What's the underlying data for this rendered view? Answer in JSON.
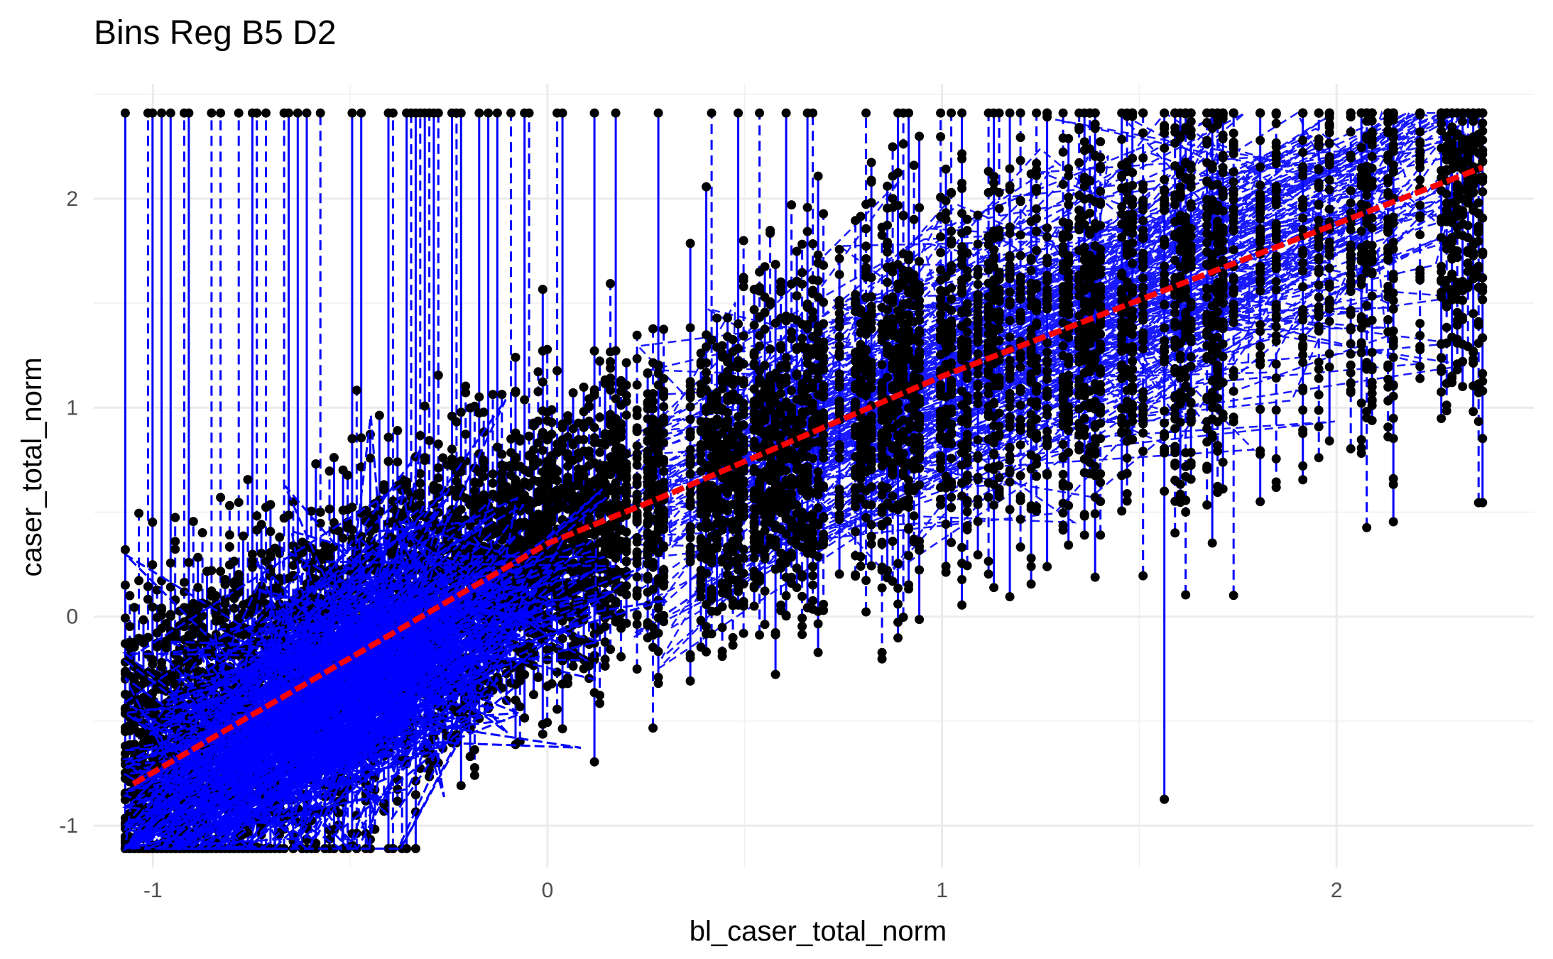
{
  "chart_data": {
    "type": "scatter",
    "title": "Bins Reg B5 D2",
    "xlabel": "bl_caser_total_norm",
    "ylabel": "caser_total_norm",
    "xlim": [
      -1.15,
      2.5
    ],
    "ylim": [
      -1.2,
      2.55
    ],
    "x_ticks": [
      -1,
      0,
      1,
      2
    ],
    "x_tick_labels": [
      "-1",
      "0",
      "1",
      "2"
    ],
    "y_ticks": [
      -1,
      0,
      1,
      2
    ],
    "y_tick_labels": [
      "-1",
      "0",
      "1",
      "2"
    ],
    "grid": true,
    "legend": "none",
    "x_range_of_points": [
      -1.07,
      2.37
    ],
    "y_range_of_points": [
      -1.11,
      2.41
    ],
    "series": [
      {
        "kind": "points",
        "color": "#000000",
        "note_columns": "vertical stacks of observations at discrete x values",
        "approx_point_count": 9000
      },
      {
        "kind": "connecting-lines",
        "color": "#0000ff",
        "linestyles": [
          "solid",
          "dashed"
        ]
      },
      {
        "kind": "fit-line",
        "color": "#ff0000",
        "linestyle": "dashed",
        "x": [
          -1.05,
          0.0,
          0.3,
          1.0,
          2.0,
          2.37
        ],
        "y": [
          -0.8,
          0.35,
          0.58,
          1.15,
          1.88,
          2.15
        ]
      }
    ]
  }
}
